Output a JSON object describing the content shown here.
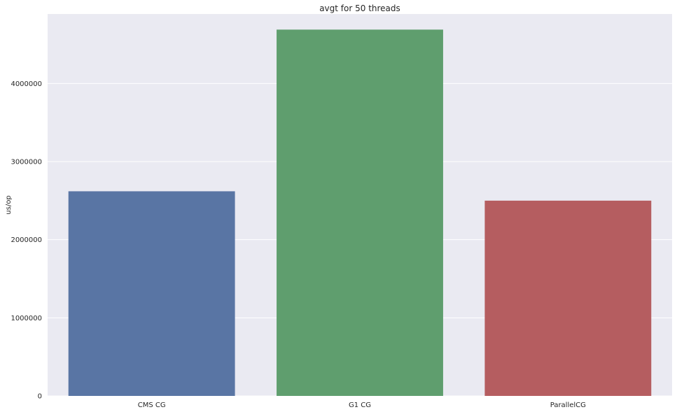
{
  "chart_data": {
    "type": "bar",
    "title": "avgt for 50 threads",
    "xlabel": "",
    "ylabel": "us/op",
    "categories": [
      "CMS CG",
      "G1 CG",
      "ParallelCG"
    ],
    "values": [
      2620000,
      4690000,
      2500000
    ],
    "colors": [
      "#5975a4",
      "#5f9e6e",
      "#b55d60"
    ],
    "ylim": [
      0,
      4890000
    ],
    "yticks": [
      0,
      1000000,
      2000000,
      3000000,
      4000000
    ],
    "ytick_labels": [
      "0",
      "1000000",
      "2000000",
      "3000000",
      "4000000"
    ],
    "grid": true,
    "background": "#eaeaf2",
    "legend": "none"
  }
}
